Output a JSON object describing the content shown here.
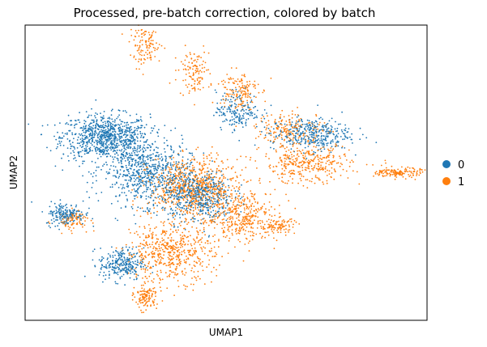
{
  "chart_data": {
    "type": "scatter",
    "title": "Processed, pre-batch correction, colored by batch",
    "xlabel": "UMAP1",
    "ylabel": "UMAP2",
    "xticks": [],
    "yticks": [],
    "grid": false,
    "legend_position": "right",
    "series": [
      {
        "name": "0",
        "color": "#1f77b4"
      },
      {
        "name": "1",
        "color": "#ff7f0e"
      }
    ],
    "density_regions": [
      {
        "series": "0",
        "center": [
          2.0,
          6.2
        ],
        "spread": [
          1.0,
          0.7
        ],
        "weight": 0.28
      },
      {
        "series": "0",
        "center": [
          3.0,
          5.0
        ],
        "spread": [
          1.0,
          1.0
        ],
        "weight": 0.22
      },
      {
        "series": "0",
        "center": [
          2.4,
          1.9
        ],
        "spread": [
          0.5,
          0.5
        ],
        "weight": 0.09
      },
      {
        "series": "0",
        "center": [
          1.0,
          3.6
        ],
        "spread": [
          0.45,
          0.35
        ],
        "weight": 0.06
      },
      {
        "series": "0",
        "center": [
          7.1,
          6.3
        ],
        "spread": [
          0.9,
          0.5
        ],
        "weight": 0.12
      },
      {
        "series": "0",
        "center": [
          5.3,
          7.1
        ],
        "spread": [
          0.5,
          0.6
        ],
        "weight": 0.06
      },
      {
        "series": "0",
        "center": [
          4.3,
          4.2
        ],
        "spread": [
          0.8,
          0.8
        ],
        "weight": 0.17
      },
      {
        "series": "1",
        "center": [
          4.2,
          4.5
        ],
        "spread": [
          1.0,
          0.9
        ],
        "weight": 0.24
      },
      {
        "series": "1",
        "center": [
          3.6,
          2.3
        ],
        "spread": [
          1.0,
          0.9
        ],
        "weight": 0.18
      },
      {
        "series": "1",
        "center": [
          5.4,
          3.5
        ],
        "spread": [
          0.8,
          0.8
        ],
        "weight": 0.12
      },
      {
        "series": "1",
        "center": [
          7.0,
          5.3
        ],
        "spread": [
          1.0,
          0.6
        ],
        "weight": 0.12
      },
      {
        "series": "1",
        "center": [
          6.6,
          6.5
        ],
        "spread": [
          0.8,
          0.5
        ],
        "weight": 0.06
      },
      {
        "series": "1",
        "center": [
          3.0,
          9.3
        ],
        "spread": [
          0.35,
          0.6
        ],
        "weight": 0.04
      },
      {
        "series": "1",
        "center": [
          4.2,
          8.4
        ],
        "spread": [
          0.35,
          0.7
        ],
        "weight": 0.04
      },
      {
        "series": "1",
        "center": [
          5.3,
          7.8
        ],
        "spread": [
          0.45,
          0.6
        ],
        "weight": 0.05
      },
      {
        "series": "1",
        "center": [
          9.3,
          5.0
        ],
        "spread": [
          0.5,
          0.15
        ],
        "weight": 0.05
      },
      {
        "series": "1",
        "center": [
          3.0,
          0.8
        ],
        "spread": [
          0.25,
          0.4
        ],
        "weight": 0.04
      },
      {
        "series": "1",
        "center": [
          6.3,
          3.2
        ],
        "spread": [
          0.4,
          0.25
        ],
        "weight": 0.03
      },
      {
        "series": "1",
        "center": [
          1.2,
          3.4
        ],
        "spread": [
          0.4,
          0.3
        ],
        "weight": 0.03
      }
    ],
    "xlim": [
      0,
      10
    ],
    "ylim": [
      0,
      10
    ]
  }
}
